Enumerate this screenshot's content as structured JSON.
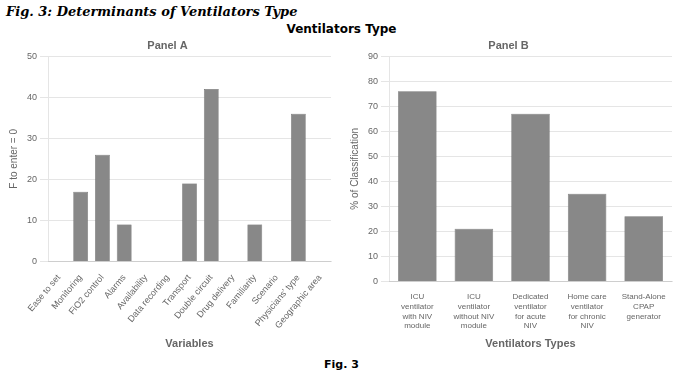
{
  "title": "Fig. 3: Determinants of Ventilators Type",
  "subtitle": "Ventilators Type",
  "annotations": [
    "Fig. 3"
  ],
  "chart_data": [
    {
      "type": "bar",
      "title": "Panel A",
      "xlabel": "Variables",
      "ylabel": "F to enter = 0",
      "categories": [
        "Ease to set",
        "Monitoring",
        "FiO2 control",
        "Alarms",
        "Availability",
        "Data recording",
        "Transport",
        "Double circuit",
        "Drug delivery",
        "Familiarity",
        "Scenario",
        "Physicians' type",
        "Geographic area"
      ],
      "values": [
        0,
        17,
        26,
        9,
        0,
        0,
        19,
        42,
        0,
        9,
        0,
        36,
        0
      ],
      "color": "#888888",
      "ylim": [
        0,
        50
      ],
      "yticks": [
        0,
        10,
        20,
        30,
        40,
        50
      ],
      "grid": true
    },
    {
      "type": "bar",
      "title": "Panel B",
      "xlabel": "Ventilators Types",
      "ylabel": "% of Classification",
      "categories": [
        "ICU\nventilator\nwith NIV\nmodule",
        "ICU\nventilator\nwithout NIV\nmodule",
        "Dedicated\nventilator\nfor acute\nNIV",
        "Home care\nventilator\nfor chronic\nNIV",
        "Stand-Alone\nCPAP\ngenerator"
      ],
      "values": [
        76,
        21,
        67,
        35,
        26
      ],
      "color": "#888888",
      "ylim": [
        0,
        90
      ],
      "yticks": [
        0,
        10,
        20,
        30,
        40,
        50,
        60,
        70,
        80,
        90
      ],
      "grid": true
    }
  ]
}
